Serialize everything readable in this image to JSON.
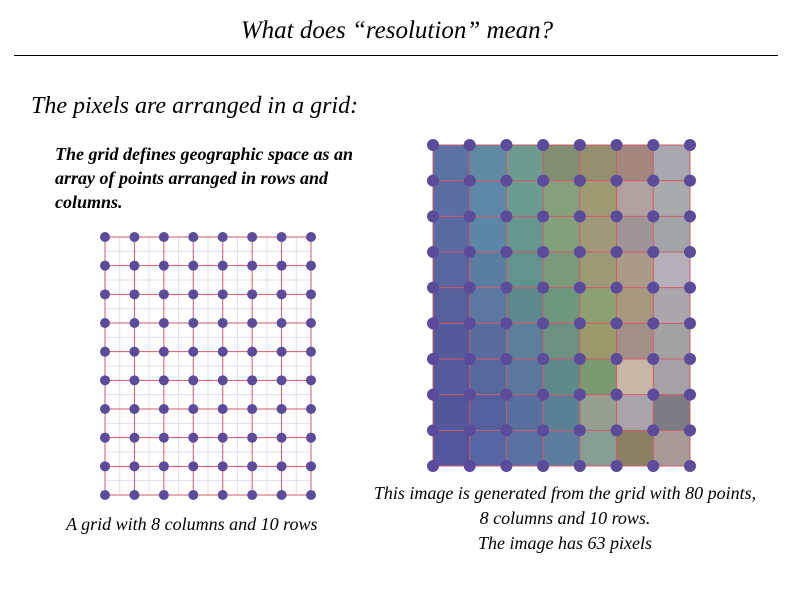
{
  "slide": {
    "title": "What does “resolution” mean?",
    "heading": "The pixels are arranged in a grid:",
    "description": "The grid defines geographic space as an array of points arranged in rows and columns.",
    "caption_left": "A grid with 8 columns and 10 rows",
    "caption_right_lines": [
      "This image is generated from the grid with 80 points,",
      "8 columns and 10 rows.",
      "The image has 63 pixels"
    ]
  },
  "grid": {
    "columns": 8,
    "rows": 10,
    "point_color": "#5b4b9a",
    "line_color": "#d25a6a",
    "inner_line_color": "#e4dcec"
  },
  "raster": {
    "pixel_columns": 7,
    "pixel_rows": 9,
    "pixel_colors": [
      [
        "#5c72a2",
        "#5f8aa2",
        "#6f9b8e",
        "#818e72",
        "#968f6e",
        "#a3867e",
        "#a9a8ae"
      ],
      [
        "#5b6ea4",
        "#5d87a6",
        "#6b9c90",
        "#85a07a",
        "#9e9a72",
        "#b0a0a0",
        "#a8aaac"
      ],
      [
        "#5a6ba2",
        "#5c86a6",
        "#66968e",
        "#82a07a",
        "#a09a78",
        "#9f9498",
        "#a2a5a8"
      ],
      [
        "#59659f",
        "#5a7ea2",
        "#62928e",
        "#7a9a7c",
        "#9a9a74",
        "#ab9a8a",
        "#b4b0b8"
      ],
      [
        "#565f9a",
        "#5a78a0",
        "#5e8a8e",
        "#6e987e",
        "#8ca072",
        "#a7997e",
        "#a9a7ac"
      ],
      [
        "#54599a",
        "#586c9e",
        "#5c7f9a",
        "#6a9082",
        "#9a9a6a",
        "#a28f88",
        "#a2a2a2"
      ],
      [
        "#545a9c",
        "#56689e",
        "#5a789c",
        "#5e8a8a",
        "#7a9a70",
        "#c8b6a6",
        "#a4a2a6"
      ],
      [
        "#52579a",
        "#54609e",
        "#58709e",
        "#5a8096",
        "#96a090",
        "#a8a4aa",
        "#7c7c82"
      ],
      [
        "#52579e",
        "#5666a2",
        "#5a70a0",
        "#5c7e9e",
        "#869e94",
        "#8c8062",
        "#a89a96"
      ]
    ]
  }
}
